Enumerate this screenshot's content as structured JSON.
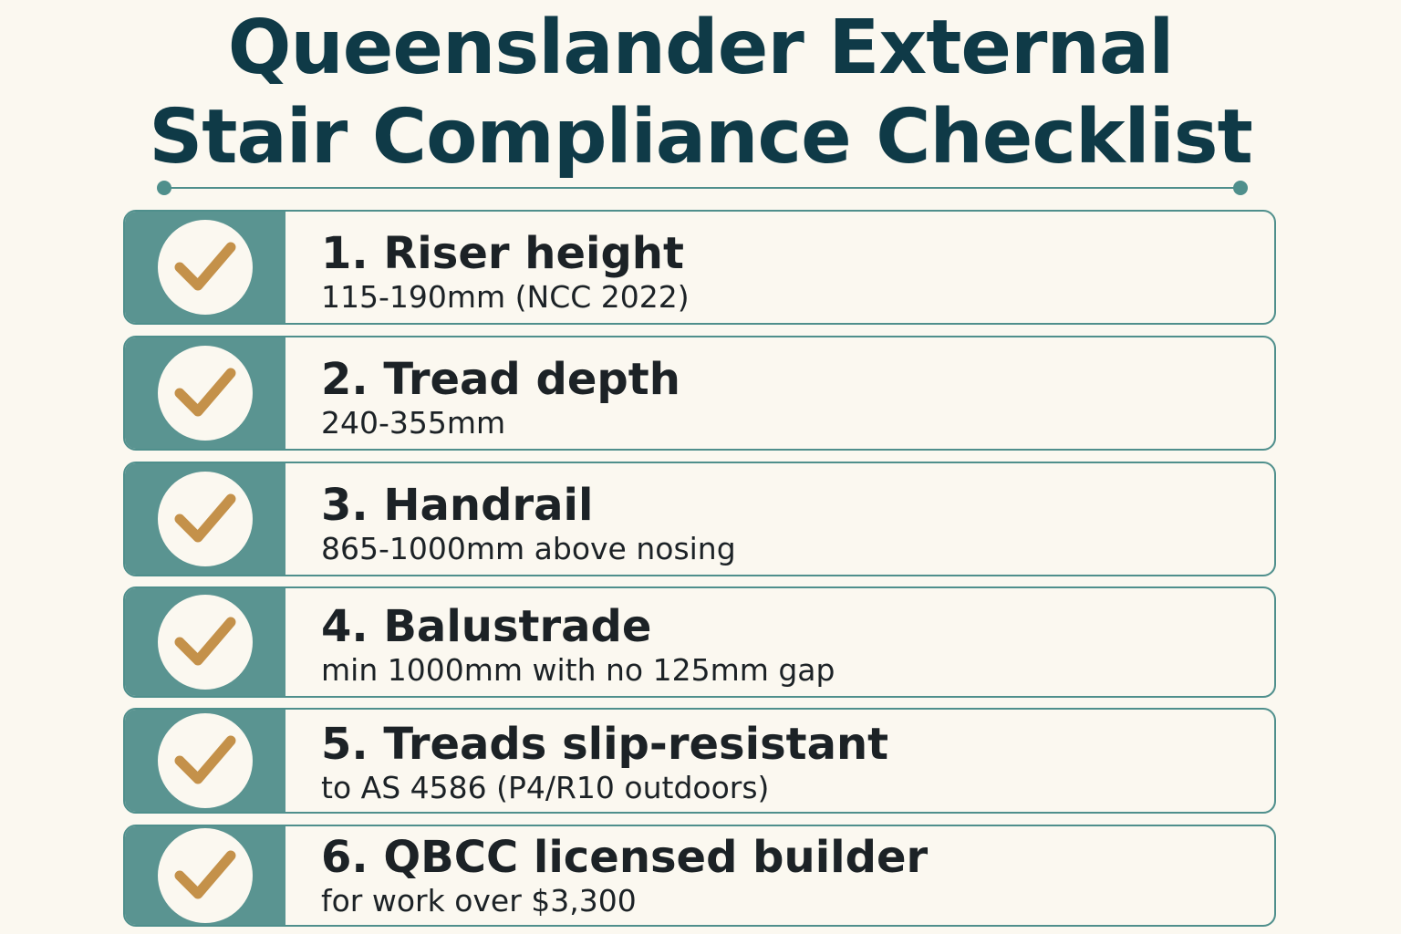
{
  "title": {
    "line1": "Queenslander External",
    "line2": "Stair Compliance Checklist"
  },
  "colors": {
    "title": "#0f3a47",
    "accent_teal": "#5a9491",
    "check_gold": "#c4914a",
    "background": "#fbf8f0"
  },
  "items": [
    {
      "heading": "1. Riser height",
      "detail": "115-190mm (NCC 2022)",
      "checked": true,
      "icon": "checkmark-icon"
    },
    {
      "heading": "2. Tread depth",
      "detail": "240-355mm",
      "checked": true,
      "icon": "checkmark-icon"
    },
    {
      "heading": "3. Handrail",
      "detail": "865-1000mm above nosing",
      "checked": true,
      "icon": "checkmark-icon"
    },
    {
      "heading": "4. Balustrade",
      "detail": "min 1000mm with no 125mm gap",
      "checked": true,
      "icon": "checkmark-icon"
    },
    {
      "heading": "5. Treads slip-resistant",
      "detail": "to AS 4586 (P4/R10 outdoors)",
      "checked": true,
      "icon": "checkmark-icon"
    },
    {
      "heading": "6. QBCC licensed builder",
      "detail": "for work over $3,300",
      "checked": true,
      "icon": "checkmark-icon"
    }
  ]
}
